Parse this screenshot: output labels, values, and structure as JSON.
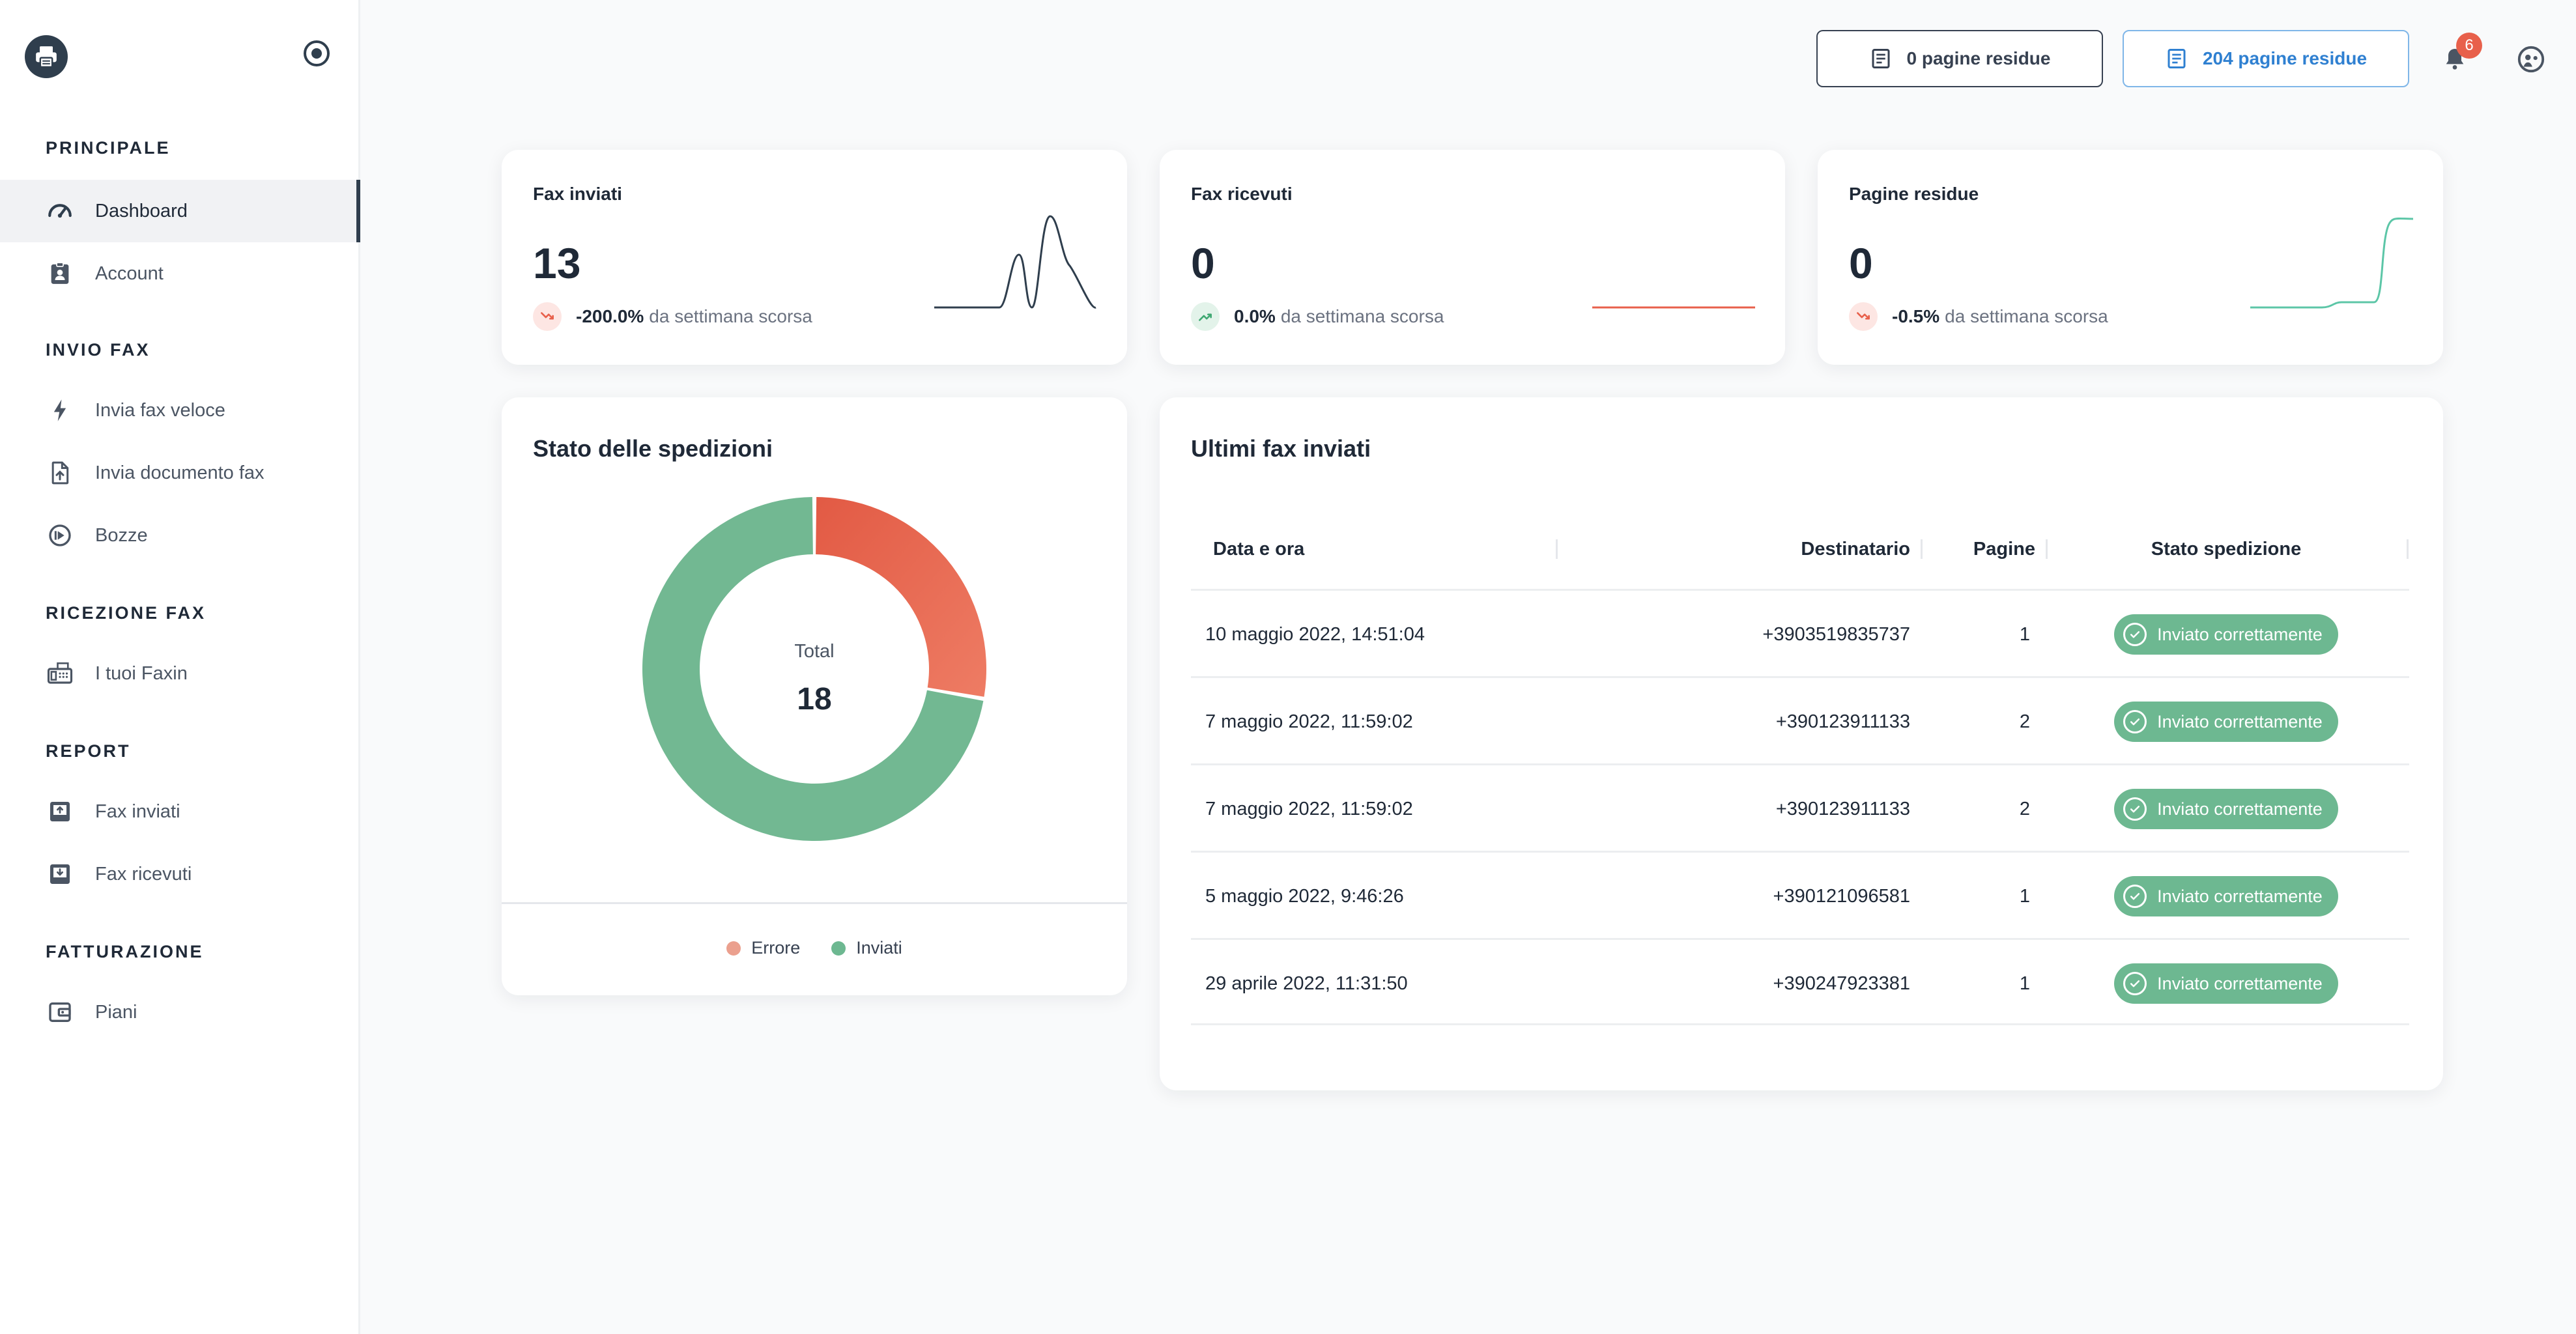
{
  "sidebar": {
    "sections": [
      {
        "label": "PRINCIPALE"
      },
      {
        "label": "INVIO FAX"
      },
      {
        "label": "RICEZIONE FAX"
      },
      {
        "label": "REPORT"
      },
      {
        "label": "FATTURAZIONE"
      }
    ],
    "items": [
      {
        "label": "Dashboard",
        "icon": "speedometer-icon",
        "active": true
      },
      {
        "label": "Account",
        "icon": "id-badge-icon"
      },
      {
        "label": "Invia fax veloce",
        "icon": "lightning-icon"
      },
      {
        "label": "Invia documento fax",
        "icon": "file-upload-icon"
      },
      {
        "label": "Bozze",
        "icon": "draft-icon"
      },
      {
        "label": "I tuoi Faxin",
        "icon": "fax-machine-icon"
      },
      {
        "label": "Fax inviati",
        "icon": "inbox-upload-icon"
      },
      {
        "label": "Fax ricevuti",
        "icon": "inbox-download-icon"
      },
      {
        "label": "Piani",
        "icon": "wallet-icon"
      }
    ]
  },
  "header": {
    "pages_button_1": "0 pagine residue",
    "pages_button_2": "204 pagine residue",
    "notification_count": "6"
  },
  "kpis": [
    {
      "title": "Fax inviati",
      "value": "13",
      "trend": "-200.0%",
      "trend_direction": "down",
      "trend_suffix": "da settimana scorsa",
      "spark_color": "#2f3e4d"
    },
    {
      "title": "Fax ricevuti",
      "value": "0",
      "trend": "0.0%",
      "trend_direction": "up",
      "trend_suffix": "da settimana scorsa",
      "spark_color": "#e8604b"
    },
    {
      "title": "Pagine residue",
      "value": "0",
      "trend": "-0.5%",
      "trend_direction": "down",
      "trend_suffix": "da settimana scorsa",
      "spark_color": "#5cc6a7"
    }
  ],
  "shipments": {
    "title": "Stato delle spedizioni",
    "total_label": "Total",
    "total_value": "18",
    "legend": [
      {
        "label": "Errore",
        "color": "#eba08e"
      },
      {
        "label": "Inviati",
        "color": "#6db891"
      }
    ]
  },
  "chart_data": {
    "type": "pie",
    "categories": [
      "Errore",
      "Inviati"
    ],
    "values": [
      5,
      13
    ],
    "colors": [
      "#e8604b",
      "#72b892"
    ],
    "center_label": "Total",
    "center_value": 18,
    "legend_position": "bottom"
  },
  "table": {
    "title": "Ultimi fax inviati",
    "columns": [
      "Data e ora",
      "Destinatario",
      "Pagine",
      "Stato spedizione"
    ],
    "rows": [
      {
        "date": "10 maggio 2022, 14:51:04",
        "recipient": "+3903519835737",
        "pages": "1",
        "status": "Inviato correttamente"
      },
      {
        "date": "7 maggio 2022, 11:59:02",
        "recipient": "+390123911133",
        "pages": "2",
        "status": "Inviato correttamente"
      },
      {
        "date": "7 maggio 2022, 11:59:02",
        "recipient": "+390123911133",
        "pages": "2",
        "status": "Inviato correttamente"
      },
      {
        "date": "5 maggio 2022, 9:46:26",
        "recipient": "+390121096581",
        "pages": "1",
        "status": "Inviato correttamente"
      },
      {
        "date": "29 aprile 2022, 11:31:50",
        "recipient": "+390247923381",
        "pages": "1",
        "status": "Inviato correttamente"
      }
    ]
  }
}
